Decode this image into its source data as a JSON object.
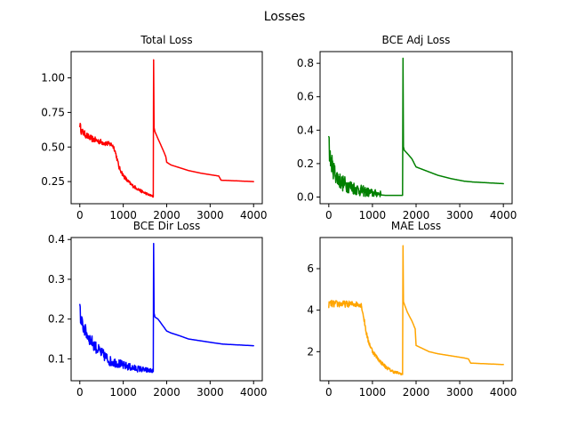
{
  "figure": {
    "title": "Losses"
  },
  "chart_data": [
    {
      "type": "line",
      "title": "Total Loss",
      "xlabel": "",
      "ylabel": "",
      "xlim": [
        -200,
        4200
      ],
      "ylim": [
        0.09,
        1.19
      ],
      "xticks": [
        0,
        1000,
        2000,
        3000,
        4000
      ],
      "yticks": [
        0.25,
        0.5,
        0.75,
        1.0
      ],
      "ytick_labels": [
        "0.25",
        "0.50",
        "0.75",
        "1.00"
      ],
      "grid": false,
      "series": [
        {
          "color": "#ff0000",
          "noisy_until": 1690,
          "noise": 0.025,
          "x": [
            0,
            30,
            100,
            200,
            300,
            400,
            500,
            600,
            700,
            750,
            800,
            850,
            900,
            1000,
            1100,
            1200,
            1300,
            1400,
            1500,
            1600,
            1690,
            1700,
            1710,
            1730,
            1800,
            1900,
            1980,
            2000,
            2100,
            2300,
            2500,
            2800,
            3100,
            3200,
            3250,
            4000
          ],
          "y": [
            0.66,
            0.61,
            0.59,
            0.565,
            0.55,
            0.54,
            0.53,
            0.52,
            0.515,
            0.51,
            0.48,
            0.42,
            0.35,
            0.29,
            0.25,
            0.22,
            0.2,
            0.18,
            0.165,
            0.15,
            0.14,
            1.13,
            0.64,
            0.61,
            0.56,
            0.49,
            0.43,
            0.39,
            0.37,
            0.35,
            0.33,
            0.31,
            0.295,
            0.29,
            0.26,
            0.25
          ]
        }
      ]
    },
    {
      "type": "line",
      "title": "BCE Adj Loss",
      "xlabel": "",
      "ylabel": "",
      "xlim": [
        -200,
        4200
      ],
      "ylim": [
        -0.04,
        0.87
      ],
      "xticks": [
        0,
        1000,
        2000,
        3000,
        4000
      ],
      "yticks": [
        0.0,
        0.2,
        0.4,
        0.6,
        0.8
      ],
      "ytick_labels": [
        "0.0",
        "0.2",
        "0.4",
        "0.6",
        "0.8"
      ],
      "grid": false,
      "series": [
        {
          "color": "#008000",
          "noisy_until": 1200,
          "noise": 0.06,
          "x": [
            0,
            20,
            50,
            100,
            200,
            300,
            400,
            500,
            600,
            700,
            800,
            900,
            1000,
            1100,
            1200,
            1300,
            1400,
            1500,
            1600,
            1690,
            1700,
            1710,
            1730,
            1800,
            1900,
            2000,
            2100,
            2300,
            2500,
            2800,
            3100,
            3300,
            4000
          ],
          "y": [
            0.37,
            0.22,
            0.2,
            0.15,
            0.1,
            0.07,
            0.06,
            0.05,
            0.04,
            0.03,
            0.025,
            0.02,
            0.015,
            0.015,
            0.012,
            0.01,
            0.01,
            0.01,
            0.01,
            0.01,
            0.83,
            0.3,
            0.28,
            0.26,
            0.23,
            0.18,
            0.17,
            0.15,
            0.13,
            0.11,
            0.095,
            0.09,
            0.08
          ]
        }
      ]
    },
    {
      "type": "line",
      "title": "BCE Dir Loss",
      "xlabel": "",
      "ylabel": "",
      "xlim": [
        -200,
        4200
      ],
      "ylim": [
        0.045,
        0.405
      ],
      "xticks": [
        0,
        1000,
        2000,
        3000,
        4000
      ],
      "yticks": [
        0.1,
        0.2,
        0.3,
        0.4
      ],
      "ytick_labels": [
        "0.1",
        "0.2",
        "0.3",
        "0.4"
      ],
      "grid": false,
      "series": [
        {
          "color": "#0000ff",
          "noisy_until": 1690,
          "noise": 0.018,
          "x": [
            0,
            20,
            50,
            100,
            200,
            300,
            400,
            500,
            600,
            700,
            800,
            900,
            1000,
            1100,
            1200,
            1300,
            1400,
            1500,
            1600,
            1690,
            1700,
            1710,
            1730,
            1800,
            1900,
            2000,
            2100,
            2300,
            2500,
            2800,
            3100,
            3300,
            4000
          ],
          "y": [
            0.245,
            0.19,
            0.185,
            0.17,
            0.15,
            0.135,
            0.12,
            0.11,
            0.1,
            0.09,
            0.088,
            0.085,
            0.08,
            0.078,
            0.075,
            0.073,
            0.072,
            0.07,
            0.069,
            0.068,
            0.39,
            0.215,
            0.205,
            0.2,
            0.185,
            0.17,
            0.165,
            0.158,
            0.15,
            0.145,
            0.14,
            0.137,
            0.133
          ]
        }
      ]
    },
    {
      "type": "line",
      "title": "MAE Loss",
      "xlabel": "",
      "ylabel": "",
      "xlim": [
        -200,
        4200
      ],
      "ylim": [
        0.6,
        7.5
      ],
      "xticks": [
        0,
        1000,
        2000,
        3000,
        4000
      ],
      "yticks": [
        2,
        4,
        6
      ],
      "ytick_labels": [
        "2",
        "4",
        "6"
      ],
      "grid": false,
      "series": [
        {
          "color": "#ffa500",
          "noisy_until": 1690,
          "noise": 0.18,
          "x": [
            0,
            700,
            750,
            800,
            850,
            900,
            1000,
            1100,
            1200,
            1300,
            1400,
            1500,
            1600,
            1690,
            1700,
            1710,
            1730,
            1800,
            1900,
            1980,
            2000,
            2100,
            2300,
            2500,
            2800,
            3100,
            3200,
            3250,
            4000
          ],
          "y": [
            4.25,
            4.25,
            4.2,
            3.6,
            3.0,
            2.5,
            2.0,
            1.7,
            1.45,
            1.25,
            1.1,
            1.0,
            0.95,
            0.9,
            7.1,
            4.4,
            4.3,
            3.9,
            3.5,
            3.1,
            2.3,
            2.2,
            2.0,
            1.9,
            1.8,
            1.7,
            1.65,
            1.45,
            1.38
          ]
        }
      ]
    }
  ]
}
